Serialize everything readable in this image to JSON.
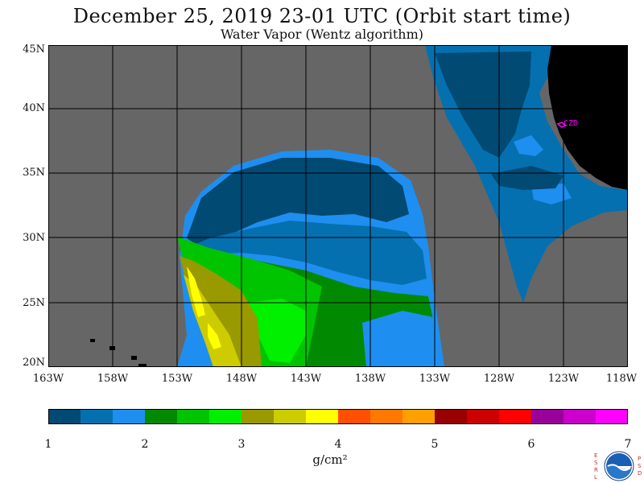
{
  "title": "December 25, 2019  23-01 UTC  (Orbit start time)",
  "subtitle": "Water Vapor (Wentz algorithm)",
  "map": {
    "lat_labels": [
      "45N",
      "40N",
      "35N",
      "30N",
      "25N",
      "20N"
    ],
    "lon_labels": [
      "163W",
      "158W",
      "153W",
      "148W",
      "143W",
      "138W",
      "133W",
      "128W",
      "123W",
      "118W"
    ],
    "station_label": "CZD",
    "colors": {
      "ocean_missing": "#666666",
      "land": "#000000",
      "grid": "#000000",
      "station_marker": "#ff00ff"
    }
  },
  "colorbar": {
    "tick_labels": [
      "1",
      "2",
      "3",
      "4",
      "5",
      "6",
      "7"
    ],
    "unit": "g/cm²",
    "bins": [
      "#014a74",
      "#0570b0",
      "#1e8ff0",
      "#018a01",
      "#00c400",
      "#00f000",
      "#999900",
      "#cccc00",
      "#ffff00",
      "#ff5000",
      "#ff7800",
      "#ffa000",
      "#990000",
      "#cc0000",
      "#ff0000",
      "#990099",
      "#cc00cc",
      "#ff00ff"
    ]
  },
  "logo": {
    "left_letters": "E S R L",
    "right_letters": "P S D"
  }
}
